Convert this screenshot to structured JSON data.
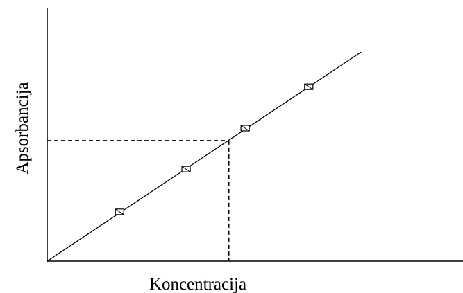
{
  "chart_data": {
    "type": "scatter",
    "x_label": "Koncentracija",
    "y_label": "Apsorbancija",
    "xlim": [
      0,
      100
    ],
    "ylim": [
      0,
      100
    ],
    "points": {
      "x": [
        17.4,
        33.4,
        47.6,
        62.9
      ],
      "y": [
        19.5,
        36.4,
        52.6,
        69.0
      ],
      "color": "#000000"
    },
    "fit_line": {
      "x": [
        0,
        75.5
      ],
      "y": [
        0,
        82.7
      ],
      "color": "#000000"
    },
    "reading": {
      "x": 43.7,
      "y": 47.7,
      "color": "#000000"
    }
  }
}
